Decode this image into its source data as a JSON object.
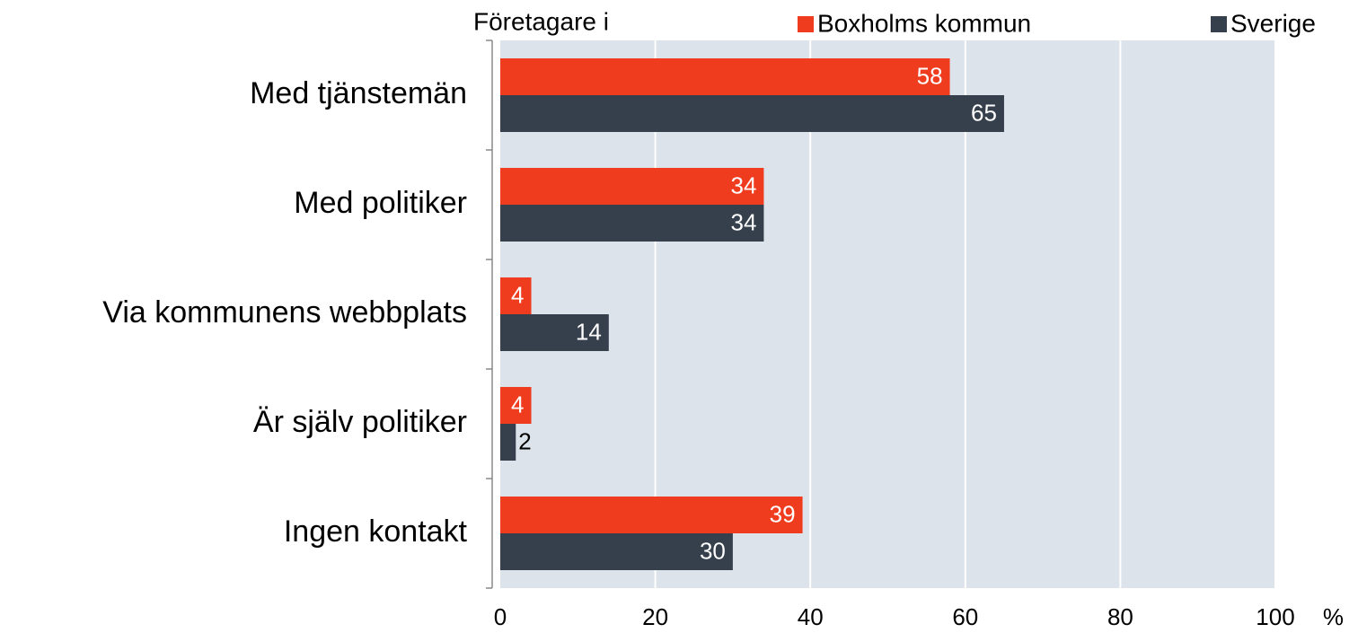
{
  "chart_data": {
    "type": "hbar",
    "legend_title": "Företagare i",
    "x_unit": "%",
    "categories": [
      "Med tjänstemän",
      "Med politiker",
      "Via kommunens webbplats",
      "Är själv politiker",
      "Ingen kontakt"
    ],
    "series": [
      {
        "name": "Boxholms kommun",
        "color": "#f03c1e",
        "values": [
          58,
          34,
          4,
          4,
          39
        ]
      },
      {
        "name": "Sverige",
        "color": "#36404d",
        "values": [
          65,
          34,
          14,
          2,
          30
        ]
      }
    ],
    "xlim": [
      0,
      100
    ],
    "xticks": [
      0,
      20,
      40,
      60,
      80,
      100
    ],
    "grid": true,
    "background": "#dde3ea"
  }
}
